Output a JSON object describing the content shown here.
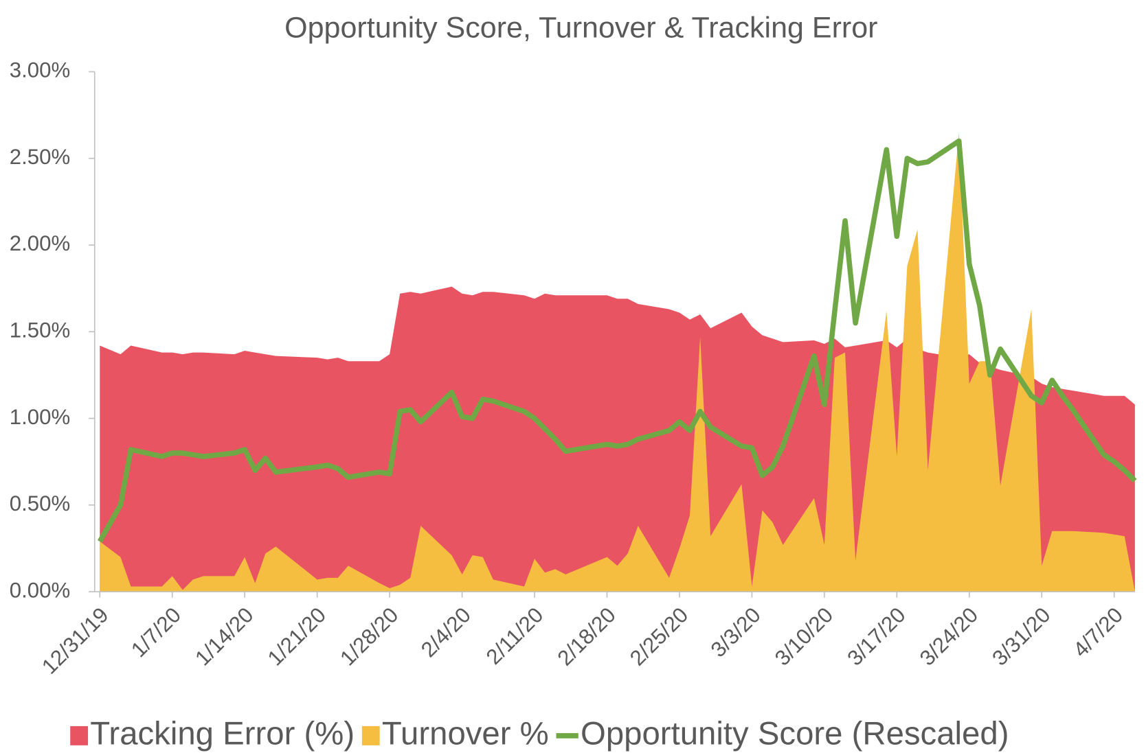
{
  "chart_data": {
    "type": "area-line",
    "title": "Opportunity Score, Turnover & Tracking Error",
    "x": [
      "12/31/19",
      "1/2/20",
      "1/3/20",
      "1/6/20",
      "1/7/20",
      "1/8/20",
      "1/9/20",
      "1/10/20",
      "1/13/20",
      "1/14/20",
      "1/15/20",
      "1/16/20",
      "1/17/20",
      "1/21/20",
      "1/22/20",
      "1/23/20",
      "1/24/20",
      "1/27/20",
      "1/28/20",
      "1/29/20",
      "1/30/20",
      "1/31/20",
      "2/3/20",
      "2/4/20",
      "2/5/20",
      "2/6/20",
      "2/7/20",
      "2/10/20",
      "2/11/20",
      "2/12/20",
      "2/13/20",
      "2/14/20",
      "2/18/20",
      "2/19/20",
      "2/20/20",
      "2/21/20",
      "2/24/20",
      "2/25/20",
      "2/26/20",
      "2/27/20",
      "2/28/20",
      "3/2/20",
      "3/3/20",
      "3/4/20",
      "3/5/20",
      "3/6/20",
      "3/9/20",
      "3/10/20",
      "3/11/20",
      "3/12/20",
      "3/13/20",
      "3/16/20",
      "3/17/20",
      "3/18/20",
      "3/19/20",
      "3/20/20",
      "3/23/20",
      "3/24/20",
      "3/25/20",
      "3/26/20",
      "3/27/20",
      "3/30/20",
      "3/31/20",
      "4/1/20",
      "4/2/20",
      "4/3/20",
      "4/6/20",
      "4/7/20",
      "4/8/20",
      "4/9/20"
    ],
    "series": [
      {
        "name": "Tracking Error (%)",
        "kind": "area",
        "color": "#E85462",
        "values": [
          1.42,
          1.37,
          1.42,
          1.38,
          1.38,
          1.37,
          1.38,
          1.38,
          1.37,
          1.39,
          1.38,
          1.37,
          1.36,
          1.35,
          1.34,
          1.35,
          1.33,
          1.33,
          1.37,
          1.72,
          1.73,
          1.72,
          1.76,
          1.72,
          1.71,
          1.73,
          1.73,
          1.71,
          1.69,
          1.72,
          1.71,
          1.71,
          1.71,
          1.69,
          1.69,
          1.66,
          1.63,
          1.61,
          1.57,
          1.6,
          1.52,
          1.61,
          1.53,
          1.48,
          1.46,
          1.44,
          1.45,
          1.43,
          1.46,
          1.41,
          1.42,
          1.45,
          1.41,
          1.46,
          1.4,
          1.38,
          1.35,
          1.37,
          1.32,
          1.3,
          1.28,
          1.24,
          1.2,
          1.18,
          1.17,
          1.16,
          1.13,
          1.13,
          1.13,
          1.08
        ]
      },
      {
        "name": "Turnover %",
        "kind": "area",
        "color": "#F5BE41",
        "values": [
          0.29,
          0.2,
          0.03,
          0.03,
          0.09,
          0.01,
          0.07,
          0.09,
          0.09,
          0.2,
          0.05,
          0.22,
          0.26,
          0.07,
          0.08,
          0.08,
          0.15,
          0.05,
          0.02,
          0.04,
          0.08,
          0.38,
          0.21,
          0.1,
          0.21,
          0.2,
          0.07,
          0.03,
          0.19,
          0.11,
          0.13,
          0.1,
          0.2,
          0.15,
          0.22,
          0.38,
          0.08,
          0.25,
          0.44,
          1.47,
          0.32,
          0.62,
          0.03,
          0.47,
          0.4,
          0.27,
          0.54,
          0.27,
          1.35,
          1.38,
          0.18,
          1.62,
          0.78,
          1.88,
          2.09,
          0.7,
          2.65,
          1.2,
          1.33,
          1.33,
          0.61,
          1.63,
          0.15,
          0.35,
          0.35,
          0.35,
          0.34,
          0.33,
          0.32,
          0
        ]
      },
      {
        "name": "Opportunity Score (Rescaled)",
        "kind": "line",
        "color": "#70A845",
        "values": [
          0.29,
          0.5,
          0.82,
          0.78,
          0.8,
          0.8,
          0.79,
          0.78,
          0.8,
          0.82,
          0.7,
          0.77,
          0.69,
          0.72,
          0.73,
          0.71,
          0.66,
          0.69,
          0.68,
          1.04,
          1.05,
          0.98,
          1.15,
          1.01,
          1,
          1.11,
          1.1,
          1.04,
          1,
          0.94,
          0.88,
          0.81,
          0.85,
          0.84,
          0.85,
          0.88,
          0.93,
          0.98,
          0.93,
          1.04,
          0.95,
          0.84,
          0.83,
          0.67,
          0.72,
          0.84,
          1.36,
          1.08,
          1.62,
          2.14,
          1.55,
          2.55,
          2.05,
          2.5,
          2.47,
          2.48,
          2.6,
          1.89,
          1.65,
          1.25,
          1.4,
          1.13,
          1.09,
          1.22,
          1.13,
          1.05,
          0.79,
          0.75,
          0.7,
          0.64
        ]
      }
    ],
    "xlim": [
      "12/31/19",
      "4/9/20"
    ],
    "xticks": [
      "12/31/19",
      "1/7/20",
      "1/14/20",
      "1/21/20",
      "1/28/20",
      "2/4/20",
      "2/11/20",
      "2/18/20",
      "2/25/20",
      "3/3/20",
      "3/10/20",
      "3/17/20",
      "3/24/20",
      "3/31/20",
      "4/7/20"
    ],
    "ylim": [
      0,
      3
    ],
    "yticks": [
      {
        "value": 0,
        "label": "0.00%"
      },
      {
        "value": 0.5,
        "label": "0.50%"
      },
      {
        "value": 1,
        "label": "1.00%"
      },
      {
        "value": 1.5,
        "label": "1.50%"
      },
      {
        "value": 2,
        "label": "2.00%"
      },
      {
        "value": 2.5,
        "label": "2.50%"
      },
      {
        "value": 3,
        "label": "3.00%"
      }
    ],
    "grid": false,
    "legend": "bottom"
  }
}
